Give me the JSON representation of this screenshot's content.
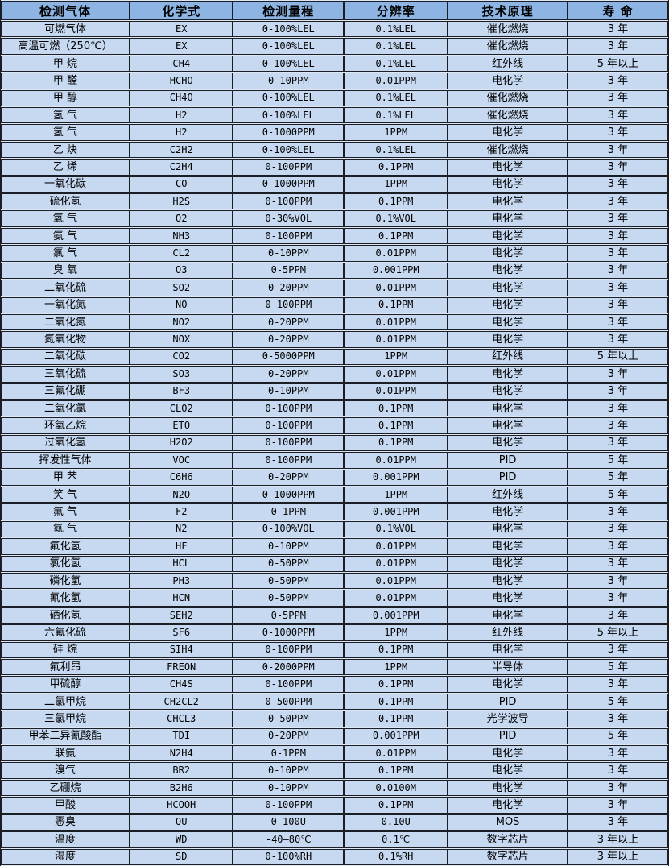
{
  "table": {
    "headers": [
      "检测气体",
      "化学式",
      "检测量程",
      "分辨率",
      "技术原理",
      "寿 命"
    ],
    "rows": [
      [
        "可燃气体",
        "EX",
        "0-100%LEL",
        "0.1%LEL",
        "催化燃烧",
        "3 年"
      ],
      [
        "高温可燃（250℃）",
        "EX",
        "0-100%LEL",
        "0.1%LEL",
        "催化燃烧",
        "3 年"
      ],
      [
        "甲 烷",
        "CH4",
        "0-100%LEL",
        "0.1%LEL",
        "红外线",
        "5 年以上"
      ],
      [
        "甲 醛",
        "HCHO",
        "0-10PPM",
        "0.01PPM",
        "电化学",
        "3 年"
      ],
      [
        "甲 醇",
        "CH4O",
        "0-100%LEL",
        "0.1%LEL",
        "催化燃烧",
        "3 年"
      ],
      [
        "氢 气",
        "H2",
        "0-100%LEL",
        "0.1%LEL",
        "催化燃烧",
        "3 年"
      ],
      [
        "氢 气",
        "H2",
        "0-1000PPM",
        "1PPM",
        "电化学",
        "3 年"
      ],
      [
        "乙 炔",
        "C2H2",
        "0-100%LEL",
        "0.1%LEL",
        "催化燃烧",
        "3 年"
      ],
      [
        "乙 烯",
        "C2H4",
        "0-100PPM",
        "0.1PPM",
        "电化学",
        "3 年"
      ],
      [
        "一氧化碳",
        "CO",
        "0-1000PPM",
        "1PPM",
        "电化学",
        "3 年"
      ],
      [
        "硫化氢",
        "H2S",
        "0-100PPM",
        "0.1PPM",
        "电化学",
        "3 年"
      ],
      [
        "氧 气",
        "O2",
        "0-30%VOL",
        "0.1%VOL",
        "电化学",
        "3 年"
      ],
      [
        "氨 气",
        "NH3",
        "0-100PPM",
        "0.1PPM",
        "电化学",
        "3 年"
      ],
      [
        "氯 气",
        "CL2",
        "0-10PPM",
        "0.01PPM",
        "电化学",
        "3 年"
      ],
      [
        "臭 氧",
        "O3",
        "0-5PPM",
        "0.001PPM",
        "电化学",
        "3 年"
      ],
      [
        "二氧化硫",
        "SO2",
        "0-20PPM",
        "0.01PPM",
        "电化学",
        "3 年"
      ],
      [
        "一氧化氮",
        "NO",
        "0-100PPM",
        "0.1PPM",
        "电化学",
        "3 年"
      ],
      [
        "二氧化氮",
        "NO2",
        "0-20PPM",
        "0.01PPM",
        "电化学",
        "3 年"
      ],
      [
        "氮氧化物",
        "NOX",
        "0-20PPM",
        "0.01PPM",
        "电化学",
        "3 年"
      ],
      [
        "二氧化碳",
        "CO2",
        "0-5000PPM",
        "1PPM",
        "红外线",
        "5 年以上"
      ],
      [
        "三氧化硫",
        "SO3",
        "0-20PPM",
        "0.01PPM",
        "电化学",
        "3 年"
      ],
      [
        "三氟化硼",
        "BF3",
        "0-10PPM",
        "0.01PPM",
        "电化学",
        "3 年"
      ],
      [
        "二氧化氯",
        "CLO2",
        "0-100PPM",
        "0.1PPM",
        "电化学",
        "3 年"
      ],
      [
        "环氧乙烷",
        "ETO",
        "0-100PPM",
        "0.1PPM",
        "电化学",
        "3 年"
      ],
      [
        "过氧化氢",
        "H2O2",
        "0-100PPM",
        "0.1PPM",
        "电化学",
        "3 年"
      ],
      [
        "挥发性气体",
        "VOC",
        "0-100PPM",
        "0.01PPM",
        "PID",
        "5 年"
      ],
      [
        "甲 苯",
        "C6H6",
        "0-20PPM",
        "0.001PPM",
        "PID",
        "5 年"
      ],
      [
        "笑 气",
        "N2O",
        "0-1000PPM",
        "1PPM",
        "红外线",
        "5 年"
      ],
      [
        "氟 气",
        "F2",
        "0-1PPM",
        "0.001PPM",
        "电化学",
        "3 年"
      ],
      [
        "氮 气",
        "N2",
        "0-100%VOL",
        "0.1%VOL",
        "电化学",
        "3 年"
      ],
      [
        "氟化氢",
        "HF",
        "0-10PPM",
        "0.01PPM",
        "电化学",
        "3 年"
      ],
      [
        "氯化氢",
        "HCL",
        "0-50PPM",
        "0.01PPM",
        "电化学",
        "3 年"
      ],
      [
        "磷化氢",
        "PH3",
        "0-50PPM",
        "0.01PPM",
        "电化学",
        "3 年"
      ],
      [
        "氰化氢",
        "HCN",
        "0-50PPM",
        "0.01PPM",
        "电化学",
        "3 年"
      ],
      [
        "硒化氢",
        "SEH2",
        "0-5PPM",
        "0.001PPM",
        "电化学",
        "3 年"
      ],
      [
        "六氟化硫",
        "SF6",
        "0-1000PPM",
        "1PPM",
        "红外线",
        "5 年以上"
      ],
      [
        "硅 烷",
        "SIH4",
        "0-100PPM",
        "0.1PPM",
        "电化学",
        "3 年"
      ],
      [
        "氟利昂",
        "FREON",
        "0-2000PPM",
        "1PPM",
        "半导体",
        "5 年"
      ],
      [
        "甲硫醇",
        "CH4S",
        "0-100PPM",
        "0.1PPM",
        "电化学",
        "3 年"
      ],
      [
        "二氯甲烷",
        "CH2CL2",
        "0-500PPM",
        "0.1PPM",
        "PID",
        "5 年"
      ],
      [
        "三氯甲烷",
        "CHCL3",
        "0-50PPM",
        "0.1PPM",
        "光学波导",
        "3 年"
      ],
      [
        "甲苯二异氰酸酯",
        "TDI",
        "0-20PPM",
        "0.001PPM",
        "PID",
        "5 年"
      ],
      [
        "联氨",
        "N2H4",
        "0-1PPM",
        "0.01PPM",
        "电化学",
        "3 年"
      ],
      [
        "溴气",
        "BR2",
        "0-10PPM",
        "0.1PPM",
        "电化学",
        "3 年"
      ],
      [
        "乙硼烷",
        "B2H6",
        "0-10PPM",
        "0.0100M",
        "电化学",
        "3 年"
      ],
      [
        "甲酸",
        "HCOOH",
        "0-100PPM",
        "0.1PPM",
        "电化学",
        "3 年"
      ],
      [
        "恶臭",
        "OU",
        "0-100U",
        "0.10U",
        "MOS",
        "3 年"
      ],
      [
        "温度",
        "WD",
        "-40—80℃",
        "0.1℃",
        "数字芯片",
        "3 年以上"
      ],
      [
        "湿度",
        "SD",
        "0-100%RH",
        "0.1%RH",
        "数字芯片",
        "3 年以上"
      ]
    ]
  },
  "colors": {
    "header_bg": "#8db4e2",
    "row_bg": "#c6d9f1",
    "border": "#1b1e24",
    "gap": "#dce6f4",
    "text": "#000000"
  }
}
